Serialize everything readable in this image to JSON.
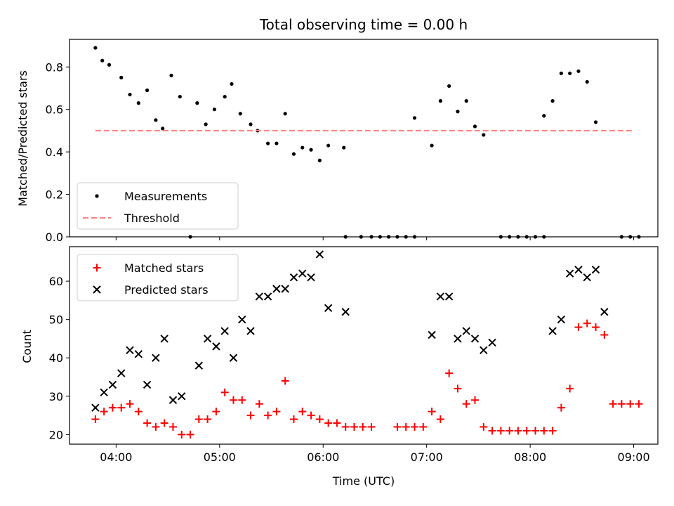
{
  "chart_data": [
    {
      "type": "scatter",
      "title": "Total observing time = 0.00 h",
      "xlabel": "",
      "ylabel": "Matched/Predicted stars",
      "ylim": [
        0,
        0.93
      ],
      "yticks": [
        0.0,
        0.2,
        0.4,
        0.6,
        0.8
      ],
      "ytick_labels": [
        "0.0",
        "0.2",
        "0.4",
        "0.6",
        "0.8"
      ],
      "xlim": [
        "03:33",
        "09:14"
      ],
      "legend_position": "lower-left",
      "series": [
        {
          "name": "Measurements",
          "marker": "dot",
          "color": "#000000",
          "points": [
            [
              "03:48",
              0.89
            ],
            [
              "03:52",
              0.83
            ],
            [
              "03:56",
              0.81
            ],
            [
              "04:03",
              0.75
            ],
            [
              "04:08",
              0.67
            ],
            [
              "04:13",
              0.63
            ],
            [
              "04:18",
              0.69
            ],
            [
              "04:23",
              0.55
            ],
            [
              "04:27",
              0.51
            ],
            [
              "04:32",
              0.76
            ],
            [
              "04:37",
              0.66
            ],
            [
              "04:47",
              0.63
            ],
            [
              "04:52",
              0.53
            ],
            [
              "04:57",
              0.6
            ],
            [
              "05:03",
              0.66
            ],
            [
              "05:07",
              0.72
            ],
            [
              "05:12",
              0.58
            ],
            [
              "05:18",
              0.53
            ],
            [
              "05:22",
              0.5
            ],
            [
              "05:28",
              0.44
            ],
            [
              "05:33",
              0.44
            ],
            [
              "05:38",
              0.58
            ],
            [
              "05:43",
              0.39
            ],
            [
              "05:48",
              0.42
            ],
            [
              "05:53",
              0.41
            ],
            [
              "05:58",
              0.36
            ],
            [
              "06:03",
              0.43
            ],
            [
              "06:12",
              0.42
            ],
            [
              "06:53",
              0.56
            ],
            [
              "07:03",
              0.43
            ],
            [
              "07:08",
              0.64
            ],
            [
              "07:13",
              0.71
            ],
            [
              "07:18",
              0.59
            ],
            [
              "07:23",
              0.64
            ],
            [
              "07:28",
              0.52
            ],
            [
              "07:33",
              0.48
            ],
            [
              "08:08",
              0.57
            ],
            [
              "08:13",
              0.64
            ],
            [
              "08:18",
              0.77
            ],
            [
              "08:23",
              0.77
            ],
            [
              "08:28",
              0.78
            ],
            [
              "08:33",
              0.73
            ],
            [
              "08:38",
              0.54
            ],
            [
              "04:43",
              0.0
            ],
            [
              "06:13",
              0.0
            ],
            [
              "06:22",
              0.0
            ],
            [
              "06:28",
              0.0
            ],
            [
              "06:33",
              0.0
            ],
            [
              "06:38",
              0.0
            ],
            [
              "06:43",
              0.0
            ],
            [
              "06:48",
              0.0
            ],
            [
              "06:53",
              0.0
            ],
            [
              "07:43",
              0.0
            ],
            [
              "07:48",
              0.0
            ],
            [
              "07:53",
              0.0
            ],
            [
              "07:58",
              0.0
            ],
            [
              "08:03",
              0.0
            ],
            [
              "08:08",
              0.0
            ],
            [
              "08:53",
              0.0
            ],
            [
              "08:58",
              0.0
            ],
            [
              "09:03",
              0.0
            ]
          ]
        },
        {
          "name": "Threshold",
          "line": "dashed",
          "color": "#ff7f7f",
          "points": [
            [
              "03:48",
              0.5
            ],
            [
              "09:00",
              0.5
            ]
          ]
        }
      ]
    },
    {
      "type": "scatter",
      "xlabel": "Time (UTC)",
      "ylabel": "Count",
      "ylim": [
        17.5,
        69
      ],
      "yticks": [
        20,
        30,
        40,
        50,
        60
      ],
      "ytick_labels": [
        "20",
        "30",
        "40",
        "50",
        "60"
      ],
      "xlim": [
        "03:33",
        "09:14"
      ],
      "xticks": [
        "04:00",
        "05:00",
        "06:00",
        "07:00",
        "08:00",
        "09:00"
      ],
      "xtick_labels": [
        "04:00",
        "05:00",
        "06:00",
        "07:00",
        "08:00",
        "09:00"
      ],
      "legend_position": "upper-left",
      "series": [
        {
          "name": "Matched stars",
          "marker": "plus",
          "color": "#ff0000",
          "points": [
            [
              "03:48",
              24
            ],
            [
              "03:53",
              26
            ],
            [
              "03:58",
              27
            ],
            [
              "04:03",
              27
            ],
            [
              "04:08",
              28
            ],
            [
              "04:13",
              26
            ],
            [
              "04:18",
              23
            ],
            [
              "04:23",
              22
            ],
            [
              "04:28",
              23
            ],
            [
              "04:33",
              22
            ],
            [
              "04:38",
              20
            ],
            [
              "04:43",
              20
            ],
            [
              "04:48",
              24
            ],
            [
              "04:53",
              24
            ],
            [
              "04:58",
              26
            ],
            [
              "05:03",
              31
            ],
            [
              "05:08",
              29
            ],
            [
              "05:13",
              29
            ],
            [
              "05:18",
              25
            ],
            [
              "05:23",
              28
            ],
            [
              "05:28",
              25
            ],
            [
              "05:33",
              26
            ],
            [
              "05:38",
              34
            ],
            [
              "05:43",
              24
            ],
            [
              "05:48",
              26
            ],
            [
              "05:53",
              25
            ],
            [
              "05:58",
              24
            ],
            [
              "06:03",
              23
            ],
            [
              "06:08",
              23
            ],
            [
              "06:13",
              22
            ],
            [
              "06:18",
              22
            ],
            [
              "06:23",
              22
            ],
            [
              "06:28",
              22
            ],
            [
              "06:43",
              22
            ],
            [
              "06:48",
              22
            ],
            [
              "06:53",
              22
            ],
            [
              "06:58",
              22
            ],
            [
              "07:03",
              26
            ],
            [
              "07:08",
              24
            ],
            [
              "07:13",
              36
            ],
            [
              "07:18",
              32
            ],
            [
              "07:23",
              28
            ],
            [
              "07:28",
              29
            ],
            [
              "07:33",
              22
            ],
            [
              "07:38",
              21
            ],
            [
              "07:43",
              21
            ],
            [
              "07:48",
              21
            ],
            [
              "07:53",
              21
            ],
            [
              "07:58",
              21
            ],
            [
              "08:03",
              21
            ],
            [
              "08:08",
              21
            ],
            [
              "08:13",
              21
            ],
            [
              "08:18",
              27
            ],
            [
              "08:23",
              32
            ],
            [
              "08:28",
              48
            ],
            [
              "08:33",
              49
            ],
            [
              "08:38",
              48
            ],
            [
              "08:43",
              46
            ],
            [
              "08:48",
              28
            ],
            [
              "08:53",
              28
            ],
            [
              "08:58",
              28
            ],
            [
              "09:03",
              28
            ]
          ]
        },
        {
          "name": "Predicted stars",
          "marker": "x",
          "color": "#000000",
          "points": [
            [
              "03:48",
              27
            ],
            [
              "03:53",
              31
            ],
            [
              "03:58",
              33
            ],
            [
              "04:03",
              36
            ],
            [
              "04:08",
              42
            ],
            [
              "04:13",
              41
            ],
            [
              "04:18",
              33
            ],
            [
              "04:23",
              40
            ],
            [
              "04:28",
              45
            ],
            [
              "04:33",
              29
            ],
            [
              "04:38",
              30
            ],
            [
              "04:48",
              38
            ],
            [
              "04:53",
              45
            ],
            [
              "04:58",
              43
            ],
            [
              "05:03",
              47
            ],
            [
              "05:08",
              40
            ],
            [
              "05:13",
              50
            ],
            [
              "05:18",
              47
            ],
            [
              "05:23",
              56
            ],
            [
              "05:28",
              56
            ],
            [
              "05:33",
              58
            ],
            [
              "05:38",
              58
            ],
            [
              "05:43",
              61
            ],
            [
              "05:48",
              62
            ],
            [
              "05:53",
              61
            ],
            [
              "05:58",
              67
            ],
            [
              "06:03",
              53
            ],
            [
              "06:13",
              52
            ],
            [
              "07:03",
              46
            ],
            [
              "07:08",
              56
            ],
            [
              "07:13",
              56
            ],
            [
              "07:18",
              45
            ],
            [
              "07:23",
              47
            ],
            [
              "07:28",
              45
            ],
            [
              "07:33",
              42
            ],
            [
              "07:38",
              44
            ],
            [
              "08:13",
              47
            ],
            [
              "08:18",
              50
            ],
            [
              "08:23",
              62
            ],
            [
              "08:28",
              63
            ],
            [
              "08:33",
              61
            ],
            [
              "08:38",
              63
            ],
            [
              "08:43",
              52
            ]
          ]
        }
      ]
    }
  ]
}
